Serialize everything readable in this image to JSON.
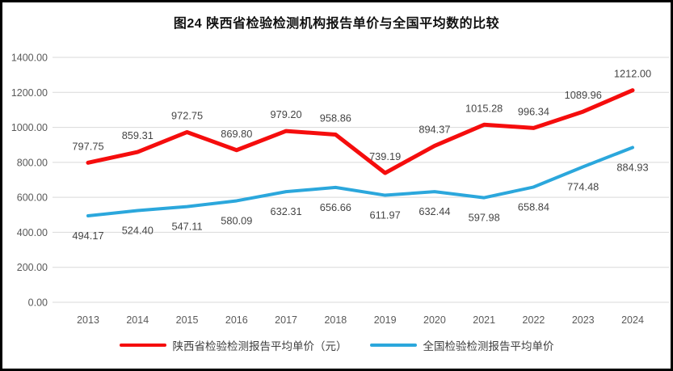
{
  "title": "图24 陕西省检验检测机构报告单价与全国平均数的比较",
  "chart_data": {
    "type": "line",
    "title": "图24 陕西省检验检测机构报告单价与全国平均数的比较",
    "xlabel": "",
    "ylabel": "",
    "categories": [
      "2013",
      "2014",
      "2015",
      "2016",
      "2017",
      "2018",
      "2019",
      "2020",
      "2021",
      "2022",
      "2023",
      "2024"
    ],
    "series": [
      {
        "name": "陕西省检验检测报告平均单价（元）",
        "color": "#f50d0d",
        "stroke_width": 5,
        "label_position": "above",
        "values": [
          797.75,
          859.31,
          972.75,
          869.8,
          979.2,
          958.86,
          739.19,
          894.37,
          1015.28,
          996.34,
          1089.96,
          1212.0
        ],
        "labels": [
          "797.75",
          "859.31",
          "972.75",
          "869.80",
          "979.20",
          "958.86",
          "739.19",
          "894.37",
          "1015.28",
          "996.34",
          "1089.96",
          "1212.00"
        ]
      },
      {
        "name": "全国检验检测报告平均单价",
        "color": "#2ba7dc",
        "stroke_width": 4,
        "label_position": "below",
        "values": [
          494.17,
          524.4,
          547.11,
          580.09,
          632.31,
          656.66,
          611.97,
          632.44,
          597.98,
          658.84,
          774.48,
          884.93
        ],
        "labels": [
          "494.17",
          "524.40",
          "547.11",
          "580.09",
          "632.31",
          "656.66",
          "611.97",
          "632.44",
          "597.98",
          "658.84",
          "774.48",
          "884.93"
        ]
      }
    ],
    "ylim": [
      0,
      1400
    ],
    "ytick_values": [
      0,
      200,
      400,
      600,
      800,
      1000,
      1200,
      1400
    ],
    "ytick_labels": [
      "0.00",
      "200.00",
      "400.00",
      "600.00",
      "800.00",
      "1000.00",
      "1200.00",
      "1400.00"
    ],
    "grid": true,
    "gridline_color": "#d9d9d9",
    "legend_position": "bottom"
  }
}
